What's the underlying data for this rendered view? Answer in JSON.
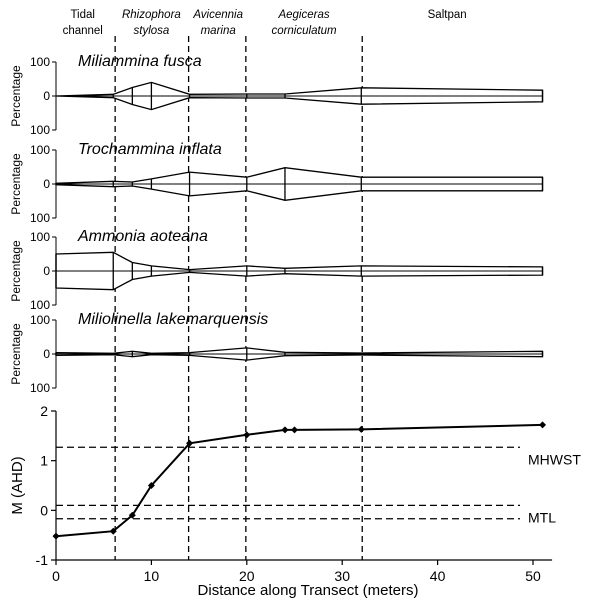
{
  "zones": [
    {
      "id": "tidal-channel",
      "lines": [
        "Tidal",
        "channel"
      ],
      "italic": false,
      "center": 2.8
    },
    {
      "id": "rhizophora",
      "lines": [
        "Rhizophora",
        "stylosa"
      ],
      "italic": true,
      "center": 10.0
    },
    {
      "id": "avicennia",
      "lines": [
        "Avicennia",
        "marina"
      ],
      "italic": true,
      "center": 17.0
    },
    {
      "id": "aegiceras",
      "lines": [
        "Aegiceras",
        "corniculatum"
      ],
      "italic": true,
      "center": 26.0
    },
    {
      "id": "saltpan",
      "lines": [
        "Saltpan"
      ],
      "italic": false,
      "center": 41.0
    }
  ],
  "boundaries": [
    6.2,
    13.9,
    19.9,
    32.1
  ],
  "species_ylabel": "Percentage",
  "species_yticks": [
    "100",
    "0",
    "100"
  ],
  "chart_data": [
    {
      "type": "area",
      "subtype": "kite-diagram",
      "title": "Miliammina fusca",
      "ylabel": "Percentage",
      "ylim": [
        -100,
        100
      ],
      "x": [
        0,
        6,
        8,
        10,
        14,
        20,
        24,
        32,
        51
      ],
      "values": [
        0,
        5,
        25,
        40,
        5,
        6,
        6,
        24,
        17
      ]
    },
    {
      "type": "area",
      "subtype": "kite-diagram",
      "title": "Trochammina inflata",
      "ylabel": "Percentage",
      "ylim": [
        -100,
        100
      ],
      "x": [
        0,
        6,
        8,
        10,
        14,
        20,
        24,
        32,
        51
      ],
      "values": [
        2,
        8,
        6,
        15,
        35,
        20,
        48,
        20,
        20
      ]
    },
    {
      "type": "area",
      "subtype": "kite-diagram",
      "title": "Ammonia aoteana",
      "ylabel": "Percentage",
      "ylim": [
        -100,
        100
      ],
      "x": [
        0,
        6,
        8,
        10,
        14,
        20,
        24,
        32,
        51
      ],
      "values": [
        50,
        55,
        25,
        15,
        4,
        15,
        8,
        15,
        12
      ]
    },
    {
      "type": "area",
      "subtype": "kite-diagram",
      "title": "Miliolinella lakemarquensis",
      "ylabel": "Percentage",
      "ylim": [
        -100,
        100
      ],
      "x": [
        0,
        6,
        8,
        10,
        14,
        20,
        24,
        32,
        51
      ],
      "values": [
        4,
        2,
        8,
        2,
        4,
        18,
        5,
        3,
        8
      ]
    },
    {
      "type": "line",
      "title": "",
      "xlabel": "Distance along Transect (meters)",
      "ylabel": "M (AHD)",
      "xlim": [
        0,
        52
      ],
      "ylim": [
        -1,
        2
      ],
      "xticks": [
        0,
        10,
        20,
        30,
        40,
        50
      ],
      "yticks": [
        -1,
        0,
        1,
        2
      ],
      "x": [
        0,
        6,
        8,
        10,
        14,
        20,
        24,
        25,
        32,
        51
      ],
      "values": [
        -0.52,
        -0.42,
        -0.1,
        0.5,
        1.35,
        1.52,
        1.62,
        1.62,
        1.63,
        1.72
      ],
      "reference_lines": [
        {
          "label": "MHWST",
          "y": 1.27
        },
        {
          "label": "MTL",
          "y": 0.1
        },
        {
          "label": "",
          "y": -0.17
        }
      ]
    }
  ]
}
